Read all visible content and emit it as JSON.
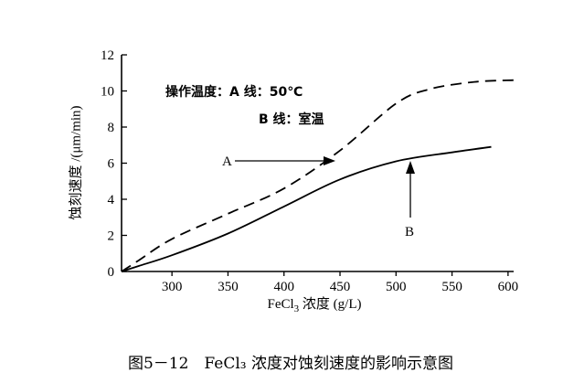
{
  "chart_data": {
    "type": "line",
    "ylabel": "蚀刻速度 /(μm/min)",
    "xlabel_main": "FeCl",
    "xlabel_sub": "3",
    "xlabel_rest": " 浓度 (g/L)",
    "xlim": [
      255,
      605
    ],
    "ylim": [
      0,
      12
    ],
    "x_ticks": [
      300,
      350,
      400,
      450,
      500,
      550,
      600
    ],
    "y_ticks": [
      0,
      2,
      4,
      6,
      8,
      10,
      12
    ],
    "grid": false,
    "series": [
      {
        "name": "A",
        "style": "dashed",
        "x": [
          255,
          270,
          300,
          350,
          400,
          450,
          500,
          530,
          570,
          605
        ],
        "y": [
          0,
          0.6,
          1.8,
          3.2,
          4.6,
          6.7,
          9.3,
          10.1,
          10.5,
          10.6
        ]
      },
      {
        "name": "B",
        "style": "solid",
        "x": [
          255,
          270,
          300,
          350,
          400,
          450,
          500,
          550,
          585
        ],
        "y": [
          0,
          0.3,
          0.9,
          2.1,
          3.6,
          5.1,
          6.1,
          6.6,
          6.9
        ]
      }
    ],
    "annotation": {
      "prefix": "操作温度：",
      "line_a": "A 线：50℃",
      "line_b": "B 线：室温"
    },
    "arrow_labels": {
      "a": "A",
      "b": "B"
    }
  },
  "caption": "图5－12　FeCl₃ 浓度对蚀刻速度的影响示意图"
}
